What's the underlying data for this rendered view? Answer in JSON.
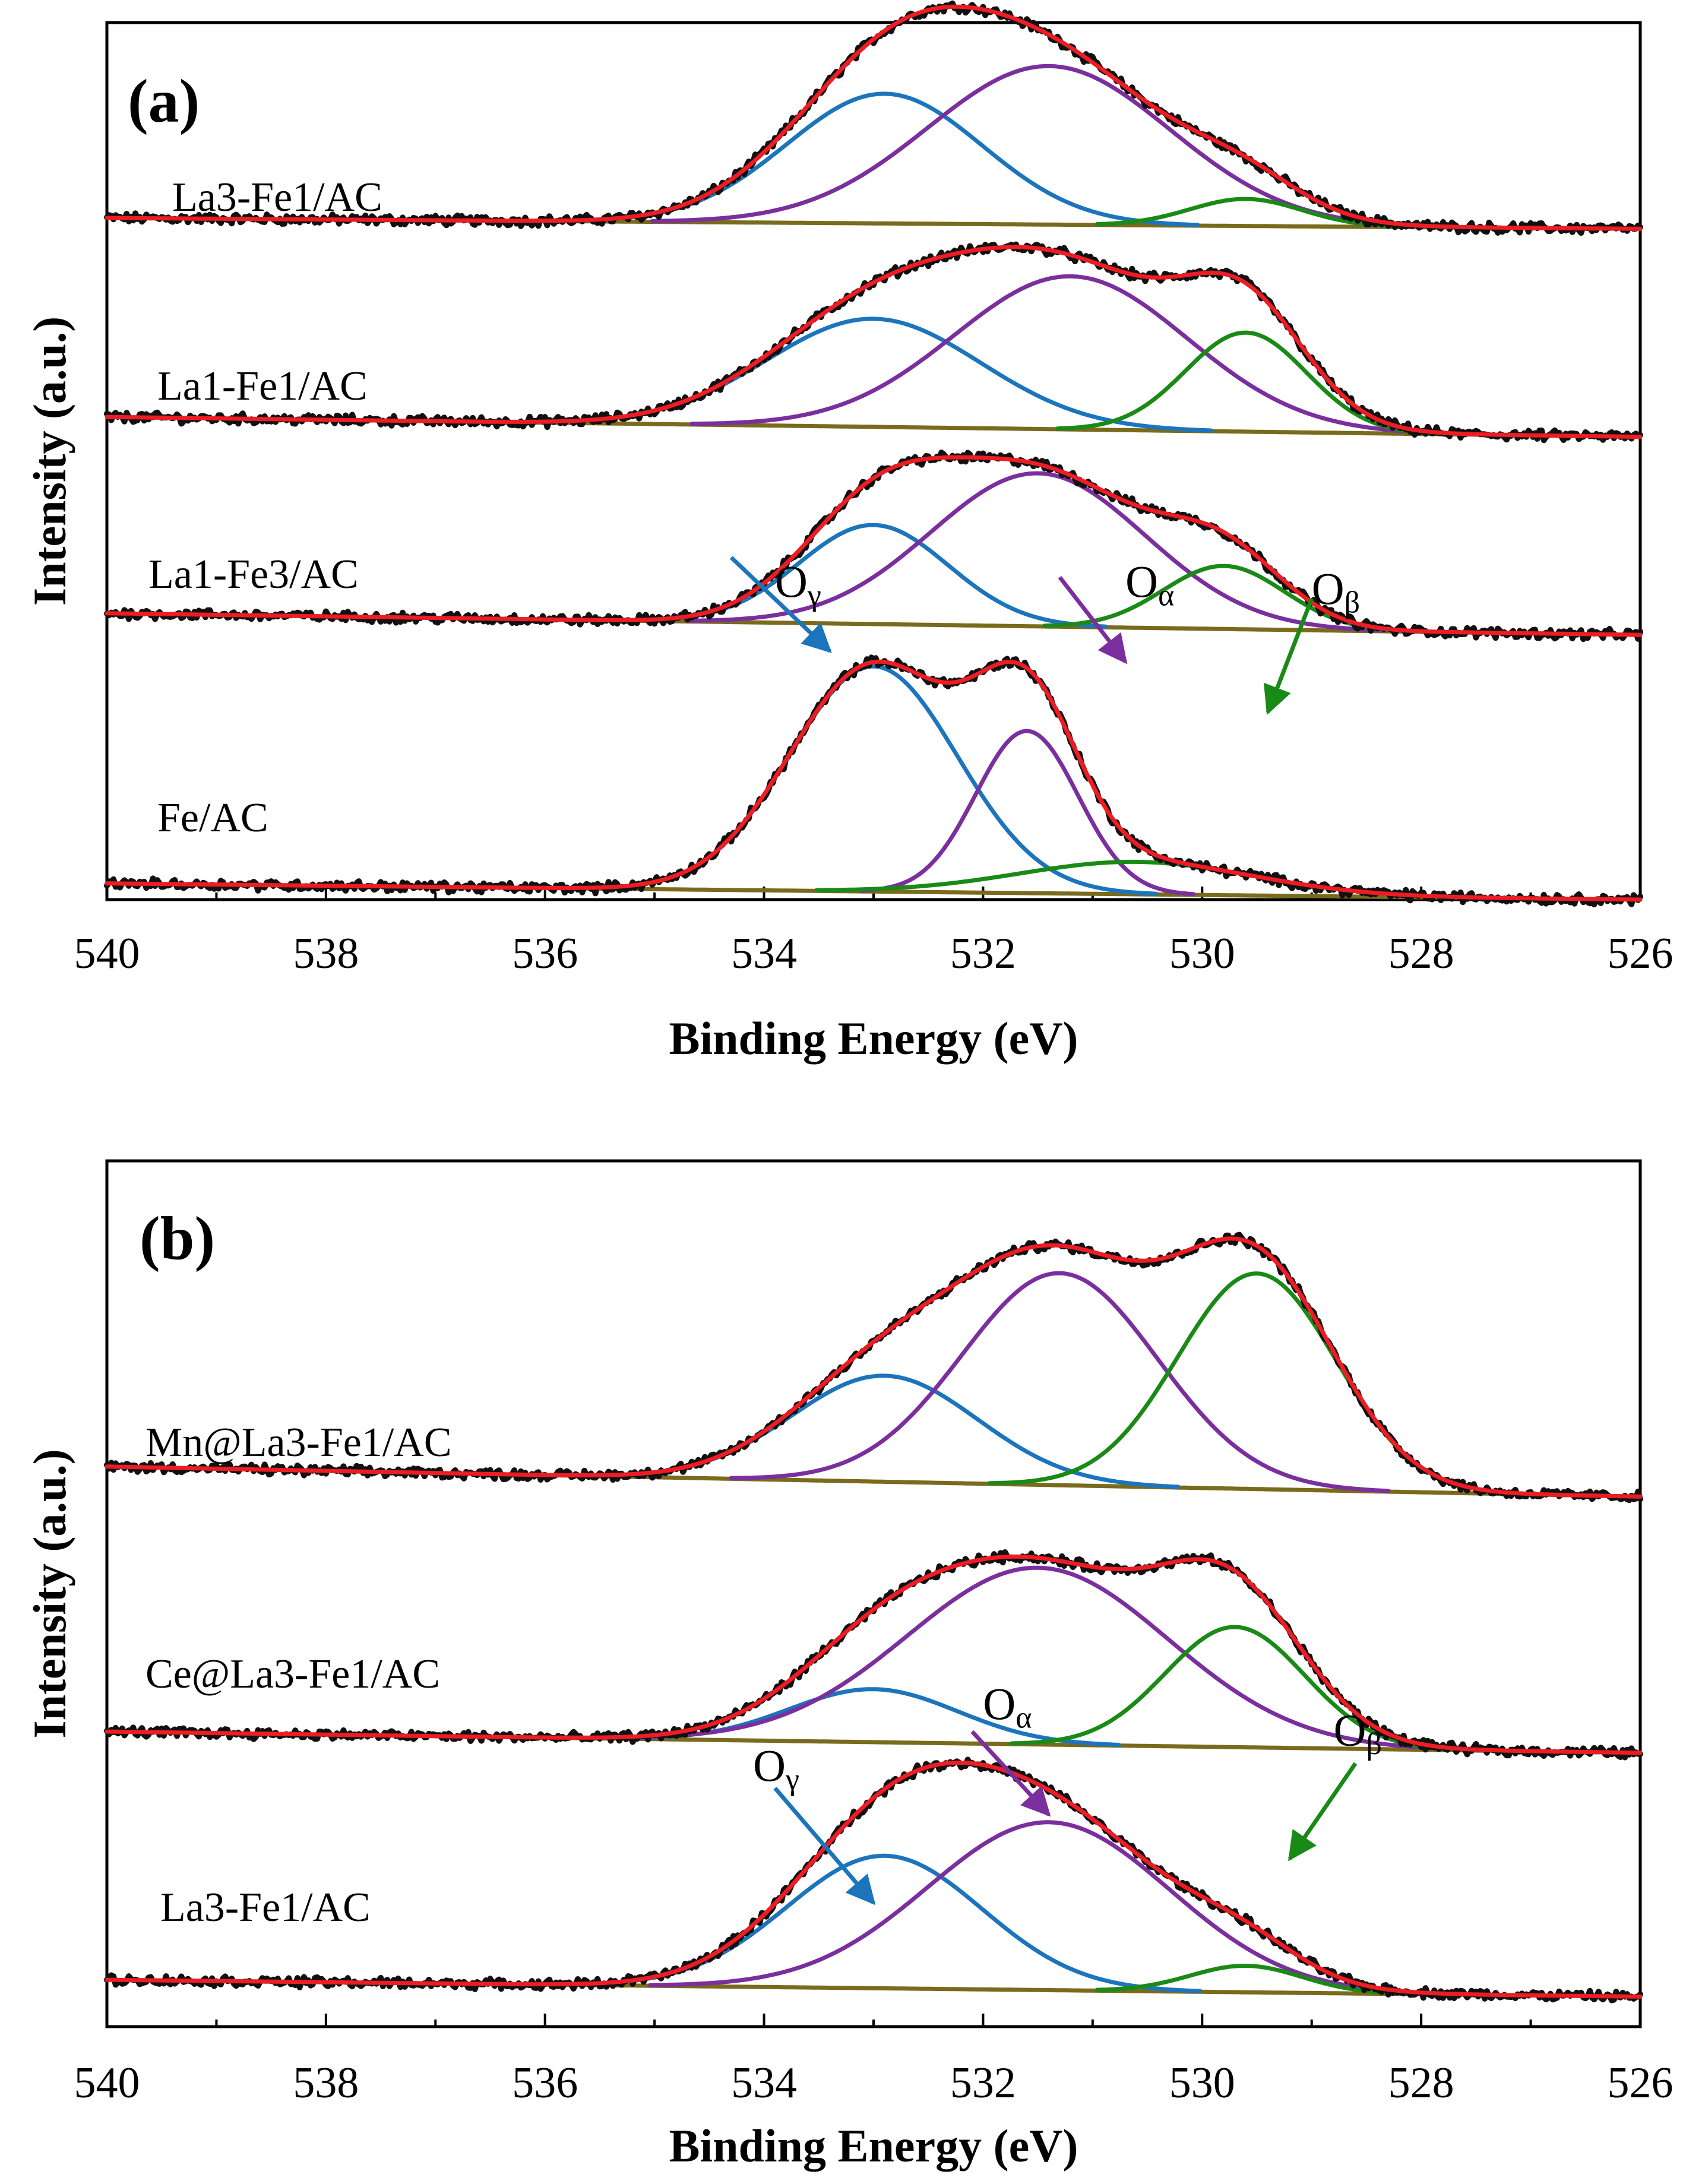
{
  "colors": {
    "raw": "#111111",
    "fit": "#ee1c24",
    "O_gamma": "#1c75bc",
    "O_alpha": "#7b2f9e",
    "O_beta": "#1a8a17",
    "background": "#7a6a1c"
  },
  "chart_data": [
    {
      "type": "line",
      "panel_label": "(a)",
      "xlabel": "Binding Energy (eV)",
      "ylabel": "Intensity (a.u.)",
      "xlim": [
        540,
        526
      ],
      "x_ticks": [
        "540",
        "538",
        "536",
        "534",
        "532",
        "530",
        "528",
        "526"
      ],
      "y_ticks": [],
      "components": [
        "raw",
        "fit",
        "O_gamma",
        "O_alpha",
        "O_beta",
        "background"
      ],
      "annotations": [
        {
          "label": "O",
          "sub": "γ",
          "component": "O_gamma",
          "label_x": 533.9,
          "label_y": 1.06,
          "arrow_from": [
            534.3,
            1.28
          ],
          "arrow_to": [
            533.4,
            0.76
          ]
        },
        {
          "label": "O",
          "sub": "α",
          "component": "O_alpha",
          "label_x": 530.7,
          "label_y": 1.06,
          "arrow_from": [
            531.3,
            1.17
          ],
          "arrow_to": [
            530.7,
            0.7
          ]
        },
        {
          "label": "O",
          "sub": "β",
          "component": "O_beta",
          "label_x": 529.0,
          "label_y": 1.02,
          "arrow_from": [
            529.0,
            1.05
          ],
          "arrow_to": [
            529.4,
            0.42
          ]
        }
      ],
      "series": [
        {
          "name": "La3-Fe1/AC",
          "offset": 3.15,
          "background": {
            "left": 0.015,
            "right": -0.045
          },
          "peaks": [
            {
              "component": "O_gamma",
              "center": 532.9,
              "height": 0.72,
              "fwhm": 2.1
            },
            {
              "component": "O_alpha",
              "center": 531.4,
              "height": 0.88,
              "fwhm": 2.6
            },
            {
              "component": "O_beta",
              "center": 529.6,
              "height": 0.15,
              "fwhm": 1.2
            }
          ]
        },
        {
          "name": "La1-Fe1/AC",
          "offset": 2.05,
          "background": {
            "left": 0.01,
            "right": -0.1
          },
          "peaks": [
            {
              "component": "O_gamma",
              "center": 533.0,
              "height": 0.6,
              "fwhm": 2.3
            },
            {
              "component": "O_alpha",
              "center": 531.2,
              "height": 0.85,
              "fwhm": 2.5
            },
            {
              "component": "O_beta",
              "center": 529.6,
              "height": 0.55,
              "fwhm": 1.3
            }
          ]
        },
        {
          "name": "La1-Fe3/AC",
          "offset": 0.95,
          "background": {
            "left": 0.02,
            "right": -0.1
          },
          "peaks": [
            {
              "component": "O_gamma",
              "center": 533.0,
              "height": 0.55,
              "fwhm": 1.6
            },
            {
              "component": "O_alpha",
              "center": 531.5,
              "height": 0.85,
              "fwhm": 2.3
            },
            {
              "component": "O_beta",
              "center": 529.8,
              "height": 0.35,
              "fwhm": 1.3
            }
          ]
        },
        {
          "name": "Fe/AC",
          "offset": -0.55,
          "background": {
            "left": 0.02,
            "right": -0.07
          },
          "peaks": [
            {
              "component": "O_gamma",
              "center": 533.0,
              "height": 1.25,
              "fwhm": 1.8
            },
            {
              "component": "O_alpha",
              "center": 531.6,
              "height": 0.9,
              "fwhm": 1.1
            },
            {
              "component": "O_beta",
              "center": 530.6,
              "height": 0.18,
              "fwhm": 2.5
            }
          ]
        }
      ]
    },
    {
      "type": "line",
      "panel_label": "(b)",
      "xlabel": "Binding Energy (eV)",
      "ylabel": "Intensity (a.u.)",
      "xlim": [
        540,
        526
      ],
      "x_ticks": [
        "540",
        "538",
        "536",
        "534",
        "532",
        "530",
        "528",
        "526"
      ],
      "y_ticks": [],
      "components": [
        "raw",
        "fit",
        "O_gamma",
        "O_alpha",
        "O_beta",
        "background"
      ],
      "annotations": [
        {
          "label": "O",
          "sub": "γ",
          "component": "O_gamma",
          "label_x": 534.1,
          "label_y": 1.14,
          "arrow_from": [
            533.9,
            1.1
          ],
          "arrow_to": [
            533.0,
            0.45
          ]
        },
        {
          "label": "O",
          "sub": "α",
          "component": "O_alpha",
          "label_x": 532.0,
          "label_y": 1.49,
          "arrow_from": [
            532.1,
            1.42
          ],
          "arrow_to": [
            531.4,
            0.95
          ]
        },
        {
          "label": "O",
          "sub": "β",
          "component": "O_beta",
          "label_x": 528.8,
          "label_y": 1.34,
          "arrow_from": [
            528.6,
            1.24
          ],
          "arrow_to": [
            529.2,
            0.7
          ]
        }
      ],
      "series": [
        {
          "name": "Mn@La3-Fe1/AC",
          "offset": 2.9,
          "background": {
            "left": 0.02,
            "right": -0.15
          },
          "peaks": [
            {
              "component": "O_gamma",
              "center": 532.9,
              "height": 0.6,
              "fwhm": 2.0
            },
            {
              "component": "O_alpha",
              "center": 531.3,
              "height": 1.2,
              "fwhm": 2.1
            },
            {
              "component": "O_beta",
              "center": 529.5,
              "height": 1.22,
              "fwhm": 1.7
            }
          ]
        },
        {
          "name": "Ce@La3-Fe1/AC",
          "offset": 1.4,
          "background": {
            "left": 0.02,
            "right": -0.1
          },
          "peaks": [
            {
              "component": "O_gamma",
              "center": 533.0,
              "height": 0.3,
              "fwhm": 1.8
            },
            {
              "component": "O_alpha",
              "center": 531.5,
              "height": 1.0,
              "fwhm": 2.8
            },
            {
              "component": "O_beta",
              "center": 529.7,
              "height": 0.68,
              "fwhm": 1.5
            }
          ]
        },
        {
          "name": "La3-Fe1/AC",
          "offset": 0.0,
          "background": {
            "left": 0.015,
            "right": -0.08
          },
          "peaks": [
            {
              "component": "O_gamma",
              "center": 532.9,
              "height": 0.75,
              "fwhm": 2.1
            },
            {
              "component": "O_alpha",
              "center": 531.4,
              "height": 0.95,
              "fwhm": 2.6
            },
            {
              "component": "O_beta",
              "center": 529.6,
              "height": 0.15,
              "fwhm": 1.2
            }
          ]
        }
      ]
    }
  ]
}
